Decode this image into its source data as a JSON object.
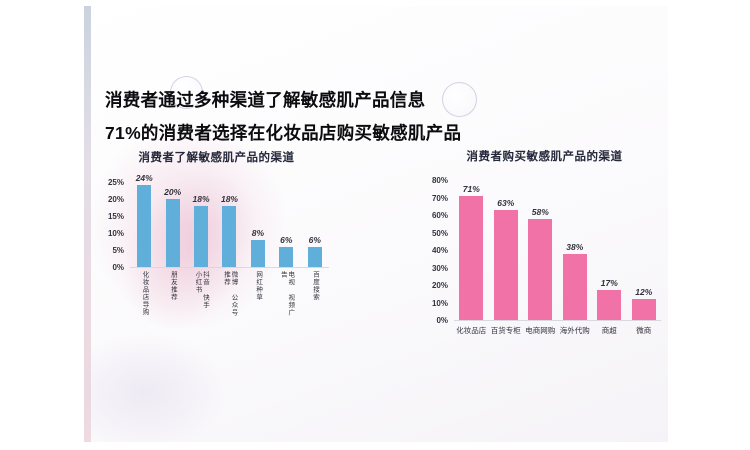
{
  "page": {
    "title_line1": "消费者通过多种渠道了解敏感肌产品信息",
    "title_line2": "71%的消费者选择在化妆品店购买敏感肌产品"
  },
  "colors": {
    "bar_blue": "#60AEDA",
    "bar_pink": "#F172A6",
    "text_dark": "#32323e"
  },
  "chart_data": [
    {
      "type": "bar",
      "title": "消费者了解敏感肌产品的渠道",
      "categories": [
        "化妆品店导购",
        "朋友推荐",
        "抖音 快手 小红书",
        "微博 公众号推荐",
        "网红种草",
        "电视 视频广告",
        "百度搜索"
      ],
      "values": [
        24,
        20,
        18,
        18,
        8,
        6,
        6
      ],
      "unit": "%",
      "ylim": [
        0,
        25
      ],
      "ytick_step": 5,
      "bar_color": "#60AEDA",
      "grid": false,
      "legend": "none",
      "label_orientation": "vertical"
    },
    {
      "type": "bar",
      "title": "消费者购买敏感肌产品的渠道",
      "categories": [
        "化妆品店",
        "百货专柜",
        "电商网购",
        "海外代购",
        "商超",
        "微商"
      ],
      "values": [
        71,
        63,
        58,
        38,
        17,
        12
      ],
      "unit": "%",
      "ylim": [
        0,
        80
      ],
      "ytick_step": 10,
      "bar_color": "#F172A6",
      "grid": false,
      "legend": "none",
      "label_orientation": "horizontal"
    }
  ]
}
